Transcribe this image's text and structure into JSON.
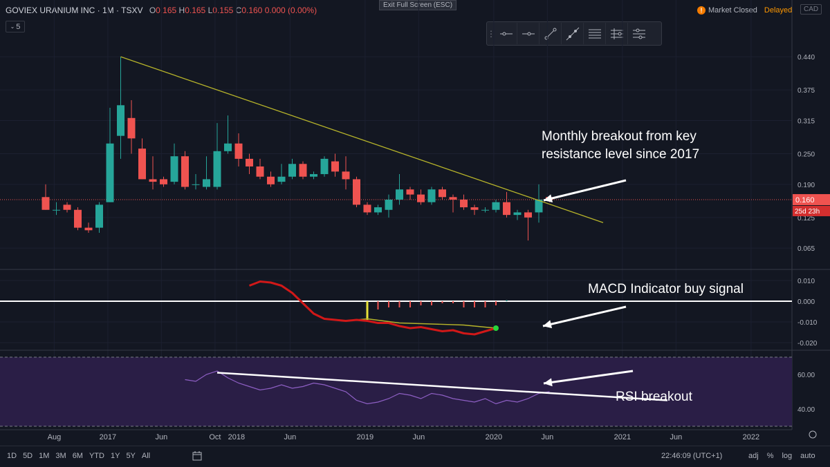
{
  "header": {
    "symbol": "GOVIEX URANIUM INC · 1M · TSXV",
    "open_label": "O",
    "open": "0.165",
    "high_label": "H",
    "high": "0.165",
    "low_label": "L",
    "low": "0.155",
    "close_label": "C",
    "close": "0.160",
    "change": "0.000 (0.00%)",
    "interval_badge": "5",
    "exit_fullscreen": "Exit Full Screen (ESC)",
    "market_status": "Market Closed",
    "delayed": "Delayed",
    "currency": "CAD",
    "alert_glyph": "!"
  },
  "toolbar": {
    "icons": [
      "horizontal-line-icon",
      "horizontal-ray-icon",
      "trend-line-icon",
      "extended-line-icon",
      "parallel-channel-icon",
      "fib-retracement-icon",
      "pitchfork-icon"
    ]
  },
  "colors": {
    "up": "#26a69a",
    "down": "#ef5350",
    "trend": "#b7b42a",
    "macd": "#d11818",
    "rsi": "#8e5fc4",
    "rsi_band": "#2a1e46",
    "annotation": "#ffffff",
    "signal_dot": "#29d53a"
  },
  "chart_data": [
    {
      "type": "candlestick",
      "title": "GOVIEX URANIUM INC · 1M · TSXV",
      "ylim": [
        0.03,
        0.47
      ],
      "y_ticks": [
        "0.440",
        "0.375",
        "0.315",
        "0.250",
        "0.190",
        "0.125",
        "0.065"
      ],
      "y_tick_values": [
        0.44,
        0.375,
        0.315,
        0.25,
        0.19,
        0.125,
        0.065
      ],
      "last_price": "0.160",
      "last_price_value": 0.16,
      "countdown": "25d 23h",
      "candles": [
        {
          "t": 0,
          "o": 0.165,
          "h": 0.19,
          "l": 0.14,
          "c": 0.14
        },
        {
          "t": 1,
          "o": 0.14,
          "h": 0.155,
          "l": 0.13,
          "c": 0.14
        },
        {
          "t": 2,
          "o": 0.15,
          "h": 0.155,
          "l": 0.135,
          "c": 0.14
        },
        {
          "t": 3,
          "o": 0.14,
          "h": 0.145,
          "l": 0.1,
          "c": 0.105
        },
        {
          "t": 4,
          "o": 0.105,
          "h": 0.115,
          "l": 0.095,
          "c": 0.1
        },
        {
          "t": 5,
          "o": 0.105,
          "h": 0.155,
          "l": 0.095,
          "c": 0.15
        },
        {
          "t": 6,
          "o": 0.155,
          "h": 0.34,
          "l": 0.155,
          "c": 0.27
        },
        {
          "t": 7,
          "o": 0.285,
          "h": 0.44,
          "l": 0.24,
          "c": 0.345
        },
        {
          "t": 8,
          "o": 0.32,
          "h": 0.355,
          "l": 0.25,
          "c": 0.28
        },
        {
          "t": 9,
          "o": 0.26,
          "h": 0.28,
          "l": 0.2,
          "c": 0.2
        },
        {
          "t": 10,
          "o": 0.2,
          "h": 0.245,
          "l": 0.18,
          "c": 0.195
        },
        {
          "t": 11,
          "o": 0.2,
          "h": 0.205,
          "l": 0.185,
          "c": 0.19
        },
        {
          "t": 12,
          "o": 0.195,
          "h": 0.27,
          "l": 0.19,
          "c": 0.245
        },
        {
          "t": 13,
          "o": 0.245,
          "h": 0.255,
          "l": 0.18,
          "c": 0.185
        },
        {
          "t": 14,
          "o": 0.19,
          "h": 0.21,
          "l": 0.18,
          "c": 0.19
        },
        {
          "t": 15,
          "o": 0.185,
          "h": 0.245,
          "l": 0.18,
          "c": 0.2
        },
        {
          "t": 16,
          "o": 0.185,
          "h": 0.31,
          "l": 0.18,
          "c": 0.255
        },
        {
          "t": 17,
          "o": 0.255,
          "h": 0.325,
          "l": 0.25,
          "c": 0.27
        },
        {
          "t": 18,
          "o": 0.27,
          "h": 0.29,
          "l": 0.225,
          "c": 0.24
        },
        {
          "t": 19,
          "o": 0.24,
          "h": 0.25,
          "l": 0.21,
          "c": 0.225
        },
        {
          "t": 20,
          "o": 0.225,
          "h": 0.24,
          "l": 0.2,
          "c": 0.205
        },
        {
          "t": 21,
          "o": 0.205,
          "h": 0.215,
          "l": 0.185,
          "c": 0.19
        },
        {
          "t": 22,
          "o": 0.195,
          "h": 0.23,
          "l": 0.19,
          "c": 0.205
        },
        {
          "t": 23,
          "o": 0.205,
          "h": 0.24,
          "l": 0.2,
          "c": 0.23
        },
        {
          "t": 24,
          "o": 0.23,
          "h": 0.235,
          "l": 0.2,
          "c": 0.205
        },
        {
          "t": 25,
          "o": 0.205,
          "h": 0.215,
          "l": 0.2,
          "c": 0.21
        },
        {
          "t": 26,
          "o": 0.21,
          "h": 0.245,
          "l": 0.205,
          "c": 0.24
        },
        {
          "t": 27,
          "o": 0.235,
          "h": 0.25,
          "l": 0.205,
          "c": 0.215
        },
        {
          "t": 28,
          "o": 0.215,
          "h": 0.245,
          "l": 0.18,
          "c": 0.2
        },
        {
          "t": 29,
          "o": 0.2,
          "h": 0.205,
          "l": 0.145,
          "c": 0.15
        },
        {
          "t": 30,
          "o": 0.15,
          "h": 0.155,
          "l": 0.13,
          "c": 0.135
        },
        {
          "t": 31,
          "o": 0.135,
          "h": 0.15,
          "l": 0.13,
          "c": 0.145
        },
        {
          "t": 32,
          "o": 0.14,
          "h": 0.17,
          "l": 0.125,
          "c": 0.16
        },
        {
          "t": 33,
          "o": 0.16,
          "h": 0.21,
          "l": 0.15,
          "c": 0.18
        },
        {
          "t": 34,
          "o": 0.18,
          "h": 0.185,
          "l": 0.16,
          "c": 0.17
        },
        {
          "t": 35,
          "o": 0.17,
          "h": 0.18,
          "l": 0.15,
          "c": 0.155
        },
        {
          "t": 36,
          "o": 0.155,
          "h": 0.185,
          "l": 0.15,
          "c": 0.18
        },
        {
          "t": 37,
          "o": 0.18,
          "h": 0.185,
          "l": 0.16,
          "c": 0.165
        },
        {
          "t": 38,
          "o": 0.165,
          "h": 0.17,
          "l": 0.135,
          "c": 0.16
        },
        {
          "t": 39,
          "o": 0.16,
          "h": 0.17,
          "l": 0.14,
          "c": 0.145
        },
        {
          "t": 40,
          "o": 0.145,
          "h": 0.15,
          "l": 0.13,
          "c": 0.14
        },
        {
          "t": 41,
          "o": 0.14,
          "h": 0.145,
          "l": 0.135,
          "c": 0.14
        },
        {
          "t": 42,
          "o": 0.14,
          "h": 0.16,
          "l": 0.135,
          "c": 0.155
        },
        {
          "t": 43,
          "o": 0.155,
          "h": 0.175,
          "l": 0.125,
          "c": 0.13
        },
        {
          "t": 44,
          "o": 0.13,
          "h": 0.14,
          "l": 0.12,
          "c": 0.135
        },
        {
          "t": 45,
          "o": 0.135,
          "h": 0.14,
          "l": 0.08,
          "c": 0.125
        },
        {
          "t": 46,
          "o": 0.135,
          "h": 0.19,
          "l": 0.115,
          "c": 0.16
        },
        {
          "t": 47,
          "o": 0.165,
          "h": 0.165,
          "l": 0.155,
          "c": 0.16
        }
      ],
      "trend_line": [
        {
          "t": 7,
          "v": 0.44
        },
        {
          "t": 52,
          "v": 0.115
        }
      ],
      "annotation": "Monthly breakout from key\nresistance level since 2017"
    },
    {
      "type": "line",
      "title": "MACD",
      "ylim": [
        -0.022,
        0.012
      ],
      "y_ticks": [
        "0.010",
        "0.000",
        "-0.010",
        "-0.020"
      ],
      "y_tick_values": [
        0.01,
        0.0,
        -0.01,
        -0.02
      ],
      "zero_line": 0.0,
      "macd": [
        {
          "t": 19,
          "v": 0.0075
        },
        {
          "t": 20,
          "v": 0.0095
        },
        {
          "t": 21,
          "v": 0.009
        },
        {
          "t": 22,
          "v": 0.0075
        },
        {
          "t": 23,
          "v": 0.004
        },
        {
          "t": 24,
          "v": -0.001
        },
        {
          "t": 25,
          "v": -0.006
        },
        {
          "t": 26,
          "v": -0.0085
        },
        {
          "t": 27,
          "v": -0.009
        },
        {
          "t": 28,
          "v": -0.0095
        },
        {
          "t": 29,
          "v": -0.009
        },
        {
          "t": 30,
          "v": -0.0095
        },
        {
          "t": 31,
          "v": -0.0105
        },
        {
          "t": 32,
          "v": -0.0105
        },
        {
          "t": 33,
          "v": -0.012
        },
        {
          "t": 34,
          "v": -0.013
        },
        {
          "t": 35,
          "v": -0.0125
        },
        {
          "t": 36,
          "v": -0.0135
        },
        {
          "t": 37,
          "v": -0.0145
        },
        {
          "t": 38,
          "v": -0.014
        },
        {
          "t": 39,
          "v": -0.0155
        },
        {
          "t": 40,
          "v": -0.016
        },
        {
          "t": 41,
          "v": -0.0145
        },
        {
          "t": 42,
          "v": -0.013
        }
      ],
      "signal": [
        {
          "t": 28,
          "v": -0.0095
        },
        {
          "t": 30,
          "v": -0.0085
        },
        {
          "t": 33,
          "v": -0.0105
        },
        {
          "t": 36,
          "v": -0.011
        },
        {
          "t": 39,
          "v": -0.0115
        },
        {
          "t": 42,
          "v": -0.013
        }
      ],
      "histogram": [
        {
          "t": 30,
          "v": -0.005
        },
        {
          "t": 31,
          "v": -0.004
        },
        {
          "t": 32,
          "v": -0.003
        },
        {
          "t": 33,
          "v": -0.003
        },
        {
          "t": 34,
          "v": -0.003
        },
        {
          "t": 35,
          "v": -0.002
        },
        {
          "t": 36,
          "v": -0.002
        },
        {
          "t": 37,
          "v": -0.001
        },
        {
          "t": 38,
          "v": -0.001
        },
        {
          "t": 39,
          "v": -0.003
        },
        {
          "t": 40,
          "v": -0.003
        },
        {
          "t": 41,
          "v": -0.003
        },
        {
          "t": 42,
          "v": -0.002
        },
        {
          "t": 43,
          "v": 0.0005
        }
      ],
      "annotation": "MACD Indicator buy signal"
    },
    {
      "type": "line",
      "title": "RSI",
      "ylim": [
        30,
        72
      ],
      "y_ticks": [
        "60.00",
        "40.00"
      ],
      "y_tick_values": [
        60,
        40
      ],
      "band": [
        30,
        70
      ],
      "rsi": [
        {
          "t": 13,
          "v": 57
        },
        {
          "t": 14,
          "v": 56
        },
        {
          "t": 15,
          "v": 60
        },
        {
          "t": 16,
          "v": 62
        },
        {
          "t": 17,
          "v": 58
        },
        {
          "t": 18,
          "v": 55
        },
        {
          "t": 19,
          "v": 53
        },
        {
          "t": 20,
          "v": 51
        },
        {
          "t": 21,
          "v": 52
        },
        {
          "t": 22,
          "v": 54
        },
        {
          "t": 23,
          "v": 52
        },
        {
          "t": 24,
          "v": 53
        },
        {
          "t": 25,
          "v": 55
        },
        {
          "t": 26,
          "v": 54
        },
        {
          "t": 27,
          "v": 52
        },
        {
          "t": 28,
          "v": 50
        },
        {
          "t": 29,
          "v": 45
        },
        {
          "t": 30,
          "v": 43
        },
        {
          "t": 31,
          "v": 44
        },
        {
          "t": 32,
          "v": 46
        },
        {
          "t": 33,
          "v": 49
        },
        {
          "t": 34,
          "v": 48
        },
        {
          "t": 35,
          "v": 46
        },
        {
          "t": 36,
          "v": 49
        },
        {
          "t": 37,
          "v": 48
        },
        {
          "t": 38,
          "v": 46
        },
        {
          "t": 39,
          "v": 45
        },
        {
          "t": 40,
          "v": 44
        },
        {
          "t": 41,
          "v": 46
        },
        {
          "t": 42,
          "v": 43
        },
        {
          "t": 43,
          "v": 45
        },
        {
          "t": 44,
          "v": 44
        },
        {
          "t": 45,
          "v": 46
        },
        {
          "t": 46,
          "v": 49
        },
        {
          "t": 47,
          "v": 50
        }
      ],
      "trend_line": [
        {
          "t": 16,
          "v": 61
        },
        {
          "t": 58,
          "v": 45
        }
      ],
      "annotation": "RSI breakout"
    }
  ],
  "x_axis": {
    "labels": [
      {
        "t": 0.8,
        "label": "Aug"
      },
      {
        "t": 5.8,
        "label": "2017"
      },
      {
        "t": 10.8,
        "label": "Jun"
      },
      {
        "t": 15.8,
        "label": "Oct"
      },
      {
        "t": 17.8,
        "label": "2018"
      },
      {
        "t": 22.8,
        "label": "Jun"
      },
      {
        "t": 29.8,
        "label": "2019"
      },
      {
        "t": 34.8,
        "label": "Jun"
      },
      {
        "t": 41.8,
        "label": "2020"
      },
      {
        "t": 46.8,
        "label": "Jun"
      },
      {
        "t": 53.8,
        "label": "2021"
      },
      {
        "t": 58.8,
        "label": "Jun"
      },
      {
        "t": 65.8,
        "label": "2022"
      }
    ]
  },
  "bottom": {
    "ranges": [
      "1D",
      "5D",
      "1M",
      "3M",
      "6M",
      "YTD",
      "1Y",
      "5Y",
      "All"
    ],
    "clock": "22:46:09 (UTC+1)",
    "adj": "adj",
    "percent": "%",
    "log": "log",
    "auto": "auto"
  }
}
